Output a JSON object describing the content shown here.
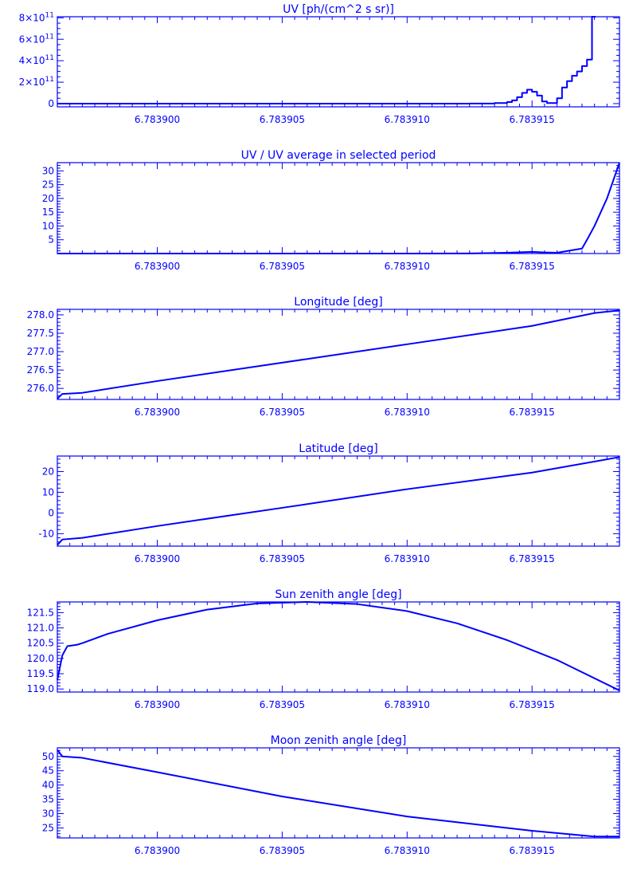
{
  "chart_data": [
    {
      "id": "uv",
      "type": "line",
      "step": true,
      "title": "UV [ph/(cm^2 s sr)]",
      "xlim": [
        6.783896,
        6.7839185
      ],
      "ylim": [
        -30000000000.0,
        810000000000.0
      ],
      "xticks": [
        6.7839,
        6.783905,
        6.78391,
        6.783915
      ],
      "xtick_labels": [
        "6.783900",
        "6.783905",
        "6.783910",
        "6.783915"
      ],
      "yticks": [
        0,
        200000000000.0,
        400000000000.0,
        600000000000.0,
        800000000000.0
      ],
      "ytick_labels": [
        {
          "mant": "0",
          "exp": ""
        },
        {
          "mant": "2×10",
          "exp": "11"
        },
        {
          "mant": "4×10",
          "exp": "11"
        },
        {
          "mant": "6×10",
          "exp": "11"
        },
        {
          "mant": "8×10",
          "exp": "11"
        }
      ],
      "yminor_per_major": 4,
      "series": [
        {
          "x": [
            6.783896,
            6.78391,
            6.7839125,
            6.7839135,
            6.783914,
            6.7839142,
            6.7839144,
            6.7839146,
            6.7839148,
            6.783915,
            6.7839152,
            6.7839154,
            6.7839156,
            6.7839158,
            6.783916,
            6.7839162,
            6.7839164,
            6.7839166,
            6.7839168,
            6.783917,
            6.7839172,
            6.7839174
          ],
          "y": [
            0,
            0,
            1000000000.0,
            5000000000.0,
            15000000000.0,
            30000000000.0,
            60000000000.0,
            100000000000.0,
            130000000000.0,
            110000000000.0,
            75000000000.0,
            20000000000.0,
            5000000000.0,
            5000000000.0,
            50000000000.0,
            150000000000.0,
            210000000000.0,
            260000000000.0,
            300000000000.0,
            350000000000.0,
            410000000000.0,
            810000000000.0
          ]
        }
      ]
    },
    {
      "id": "uv-ratio",
      "type": "line",
      "title": "UV / UV average in selected period",
      "xlim": [
        6.783896,
        6.7839185
      ],
      "ylim": [
        0,
        33
      ],
      "xticks": [
        6.7839,
        6.783905,
        6.78391,
        6.783915
      ],
      "xtick_labels": [
        "6.783900",
        "6.783905",
        "6.783910",
        "6.783915"
      ],
      "yticks": [
        5,
        10,
        15,
        20,
        25,
        30
      ],
      "ytick_labels": [
        "5",
        "10",
        "15",
        "20",
        "25",
        "30"
      ],
      "yminor_per_major": 5,
      "series": [
        {
          "x": [
            6.783896,
            6.78391,
            6.7839125,
            6.783914,
            6.783915,
            6.7839155,
            6.783916,
            6.783917,
            6.7839172,
            6.7839175,
            6.783918,
            6.7839185
          ],
          "y": [
            0,
            0,
            0.05,
            0.3,
            0.6,
            0.4,
            0.3,
            1.8,
            5,
            10,
            20,
            33
          ]
        }
      ]
    },
    {
      "id": "longitude",
      "type": "line",
      "title": "Longitude [deg]",
      "xlim": [
        6.783896,
        6.7839185
      ],
      "ylim": [
        275.7,
        278.15
      ],
      "xticks": [
        6.7839,
        6.783905,
        6.78391,
        6.783915
      ],
      "xtick_labels": [
        "6.783900",
        "6.783905",
        "6.783910",
        "6.783915"
      ],
      "yticks": [
        276.0,
        276.5,
        277.0,
        277.5,
        278.0
      ],
      "ytick_labels": [
        "276.0",
        "276.5",
        "277.0",
        "277.5",
        "278.0"
      ],
      "yminor_per_major": 5,
      "series": [
        {
          "x": [
            6.783896,
            6.7838962,
            6.7838965,
            6.783897,
            6.7839,
            6.783905,
            6.78391,
            6.783915,
            6.7839175,
            6.7839185
          ],
          "y": [
            275.72,
            275.85,
            275.86,
            275.88,
            276.2,
            276.7,
            277.2,
            277.7,
            278.05,
            278.12
          ]
        }
      ]
    },
    {
      "id": "latitude",
      "type": "line",
      "title": "Latitude [deg]",
      "xlim": [
        6.783896,
        6.7839185
      ],
      "ylim": [
        -16,
        27.5
      ],
      "xticks": [
        6.7839,
        6.783905,
        6.78391,
        6.783915
      ],
      "xtick_labels": [
        "6.783900",
        "6.783905",
        "6.783910",
        "6.783915"
      ],
      "yticks": [
        -10,
        0,
        10,
        20
      ],
      "ytick_labels": [
        "-10",
        "0",
        "10",
        "20"
      ],
      "yminor_per_major": 5,
      "series": [
        {
          "x": [
            6.783896,
            6.7838962,
            6.783897,
            6.7839,
            6.783905,
            6.78391,
            6.783915,
            6.7839185
          ],
          "y": [
            -15.5,
            -12.8,
            -12,
            -6.3,
            2.5,
            11.5,
            19.5,
            27
          ]
        }
      ]
    },
    {
      "id": "sun-zenith",
      "type": "line",
      "title": "Sun zenith angle [deg]",
      "xlim": [
        6.783896,
        6.7839185
      ],
      "ylim": [
        118.9,
        121.85
      ],
      "xticks": [
        6.7839,
        6.783905,
        6.78391,
        6.783915
      ],
      "xtick_labels": [
        "6.783900",
        "6.783905",
        "6.783910",
        "6.783915"
      ],
      "yticks": [
        119.0,
        119.5,
        120.0,
        120.5,
        121.0,
        121.5
      ],
      "ytick_labels": [
        "119.0",
        "119.5",
        "120.0",
        "120.5",
        "121.0",
        "121.5"
      ],
      "yminor_per_major": 5,
      "series": [
        {
          "x": [
            6.783896,
            6.7838962,
            6.7838964,
            6.7838968,
            6.783897,
            6.783898,
            6.7839,
            6.783902,
            6.783904,
            6.783906,
            6.783908,
            6.78391,
            6.783912,
            6.783914,
            6.783916,
            6.7839185
          ],
          "y": [
            119.3,
            120.1,
            120.4,
            120.45,
            120.5,
            120.8,
            121.25,
            121.6,
            121.8,
            121.85,
            121.78,
            121.55,
            121.15,
            120.6,
            119.95,
            118.95
          ]
        }
      ]
    },
    {
      "id": "moon-zenith",
      "type": "line",
      "title": "Moon zenith angle [deg]",
      "xlim": [
        6.783896,
        6.7839185
      ],
      "ylim": [
        21.5,
        53
      ],
      "xticks": [
        6.7839,
        6.783905,
        6.78391,
        6.783915
      ],
      "xtick_labels": [
        "6.783900",
        "6.783905",
        "6.783910",
        "6.783915"
      ],
      "yticks": [
        25,
        30,
        35,
        40,
        45,
        50
      ],
      "ytick_labels": [
        "25",
        "30",
        "35",
        "40",
        "45",
        "50"
      ],
      "yminor_per_major": 5,
      "series": [
        {
          "x": [
            6.783896,
            6.7838962,
            6.783897,
            6.7839,
            6.783905,
            6.78391,
            6.783915,
            6.7839175,
            6.7839185
          ],
          "y": [
            52.3,
            50,
            49.5,
            44.5,
            36,
            29,
            24,
            22,
            22
          ]
        }
      ]
    }
  ]
}
